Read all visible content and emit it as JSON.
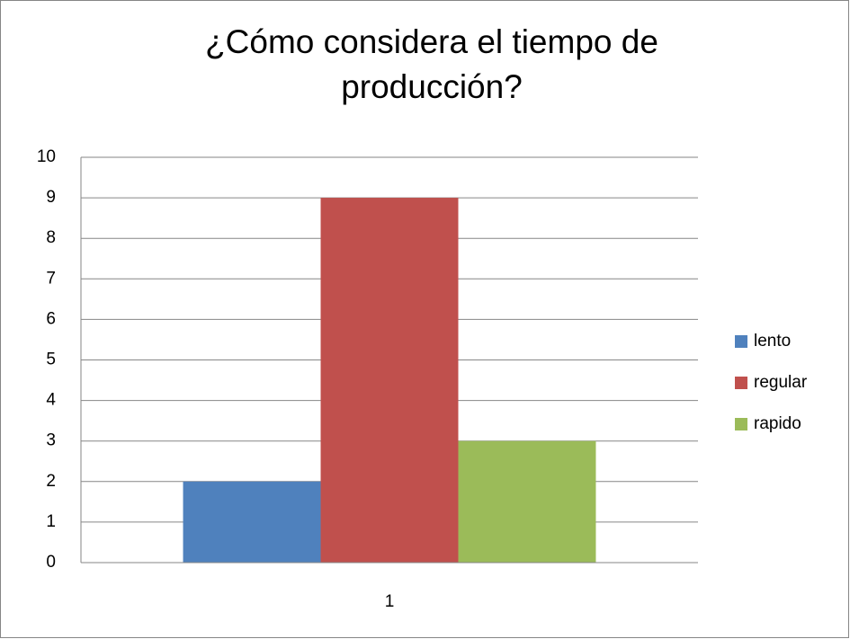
{
  "chart_data": {
    "type": "bar",
    "title": "¿Cómo considera el tiempo de producción?",
    "categories": [
      "1"
    ],
    "series": [
      {
        "name": "lento",
        "color": "#4f81bd",
        "values": [
          2
        ]
      },
      {
        "name": "regular",
        "color": "#c0504d",
        "values": [
          9
        ]
      },
      {
        "name": "rapido",
        "color": "#9bbb59",
        "values": [
          3
        ]
      }
    ],
    "ylim": [
      0,
      10
    ],
    "yticks": [
      0,
      1,
      2,
      3,
      4,
      5,
      6,
      7,
      8,
      9,
      10
    ],
    "grid": true,
    "legend": "right"
  }
}
